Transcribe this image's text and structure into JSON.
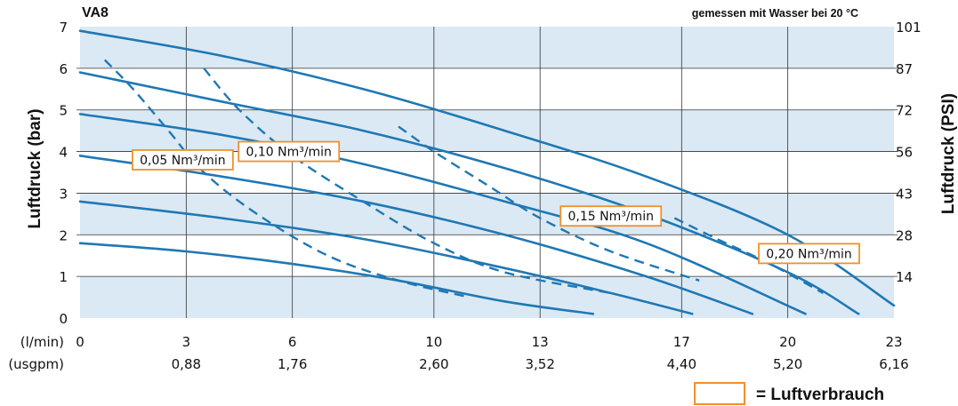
{
  "header": {
    "title": "VA8",
    "note": "gemessen mit Wasser bei 20 °C"
  },
  "axes": {
    "y_left_label": "Luftdruck (bar)",
    "y_right_label": "Luftdruck (PSI)",
    "x_unit_primary": "(l/min)",
    "x_unit_secondary": "(usgpm)"
  },
  "legend": {
    "text": "= Luftverbrauch",
    "box_color": "#f0902a"
  },
  "colors": {
    "curve": "#1f78b4",
    "grid": "#333333",
    "band": "#dbe9f5",
    "annotation_border": "#f0902a"
  },
  "chart_data": {
    "type": "line",
    "title": "VA8",
    "xlabel": "(l/min)",
    "ylabel": "Luftdruck (bar)",
    "y2label": "Luftdruck (PSI)",
    "xlim": [
      0,
      23
    ],
    "ylim": [
      0,
      7
    ],
    "grid": true,
    "x_ticks": [
      "0",
      "3",
      "6",
      "10",
      "13",
      "17",
      "20",
      "23"
    ],
    "x_ticks_usgpm": [
      "",
      "0,88",
      "1,76",
      "2,60",
      "3,52",
      "4,40",
      "5,20",
      "6,16"
    ],
    "y_ticks": [
      "0",
      "1",
      "2",
      "3",
      "4",
      "5",
      "6",
      "7"
    ],
    "y2_ticks": [
      "",
      "14",
      "28",
      "43",
      "56",
      "72",
      "87",
      "101"
    ],
    "series": [
      {
        "kind": "pressure",
        "x": [
          0,
          4,
          8,
          12,
          16,
          20,
          23
        ],
        "y": [
          6.9,
          6.3,
          5.5,
          4.5,
          3.4,
          2.0,
          0.3
        ]
      },
      {
        "kind": "pressure",
        "x": [
          0,
          4,
          8,
          12,
          16,
          20,
          22
        ],
        "y": [
          5.9,
          5.2,
          4.5,
          3.6,
          2.5,
          1.1,
          0.1
        ]
      },
      {
        "kind": "pressure",
        "x": [
          0,
          4,
          8,
          12,
          16,
          20.5
        ],
        "y": [
          4.9,
          4.4,
          3.7,
          2.8,
          1.8,
          0.1
        ]
      },
      {
        "kind": "pressure",
        "x": [
          0,
          4,
          8,
          12,
          16,
          19
        ],
        "y": [
          3.9,
          3.4,
          2.8,
          2.0,
          1.0,
          0.1
        ]
      },
      {
        "kind": "pressure",
        "x": [
          0,
          4,
          8,
          12,
          15,
          17.3
        ],
        "y": [
          2.8,
          2.4,
          1.9,
          1.2,
          0.6,
          0.1
        ]
      },
      {
        "kind": "pressure",
        "x": [
          0,
          3,
          6,
          9,
          12,
          14.5
        ],
        "y": [
          1.8,
          1.6,
          1.3,
          0.9,
          0.4,
          0.1
        ]
      },
      {
        "kind": "consumption",
        "x": [
          0.7,
          1.5,
          2.5,
          3.5,
          5,
          7,
          9,
          11
        ],
        "y": [
          6.2,
          5.5,
          4.5,
          3.5,
          2.5,
          1.5,
          0.9,
          0.5
        ]
      },
      {
        "kind": "consumption",
        "x": [
          3.5,
          4.5,
          6,
          8,
          10,
          12,
          15
        ],
        "y": [
          6.0,
          5.0,
          3.9,
          2.8,
          1.8,
          1.1,
          0.6
        ]
      },
      {
        "kind": "consumption",
        "x": [
          9,
          10,
          11.5,
          13,
          15,
          17.5
        ],
        "y": [
          4.6,
          4.0,
          3.2,
          2.4,
          1.6,
          0.9
        ]
      },
      {
        "kind": "consumption",
        "x": [
          16.8,
          18,
          19.5,
          21
        ],
        "y": [
          2.4,
          1.9,
          1.3,
          0.6
        ]
      }
    ],
    "annotations": [
      {
        "text": "0,05 Nm³/min",
        "x": 2.9,
        "y": 3.8
      },
      {
        "text": "0,10 Nm³/min",
        "x": 5.9,
        "y": 4.0
      },
      {
        "text": "0,15 Nm³/min",
        "x": 15.0,
        "y": 2.45
      },
      {
        "text": "0,20 Nm³/min",
        "x": 20.6,
        "y": 1.55
      }
    ]
  }
}
